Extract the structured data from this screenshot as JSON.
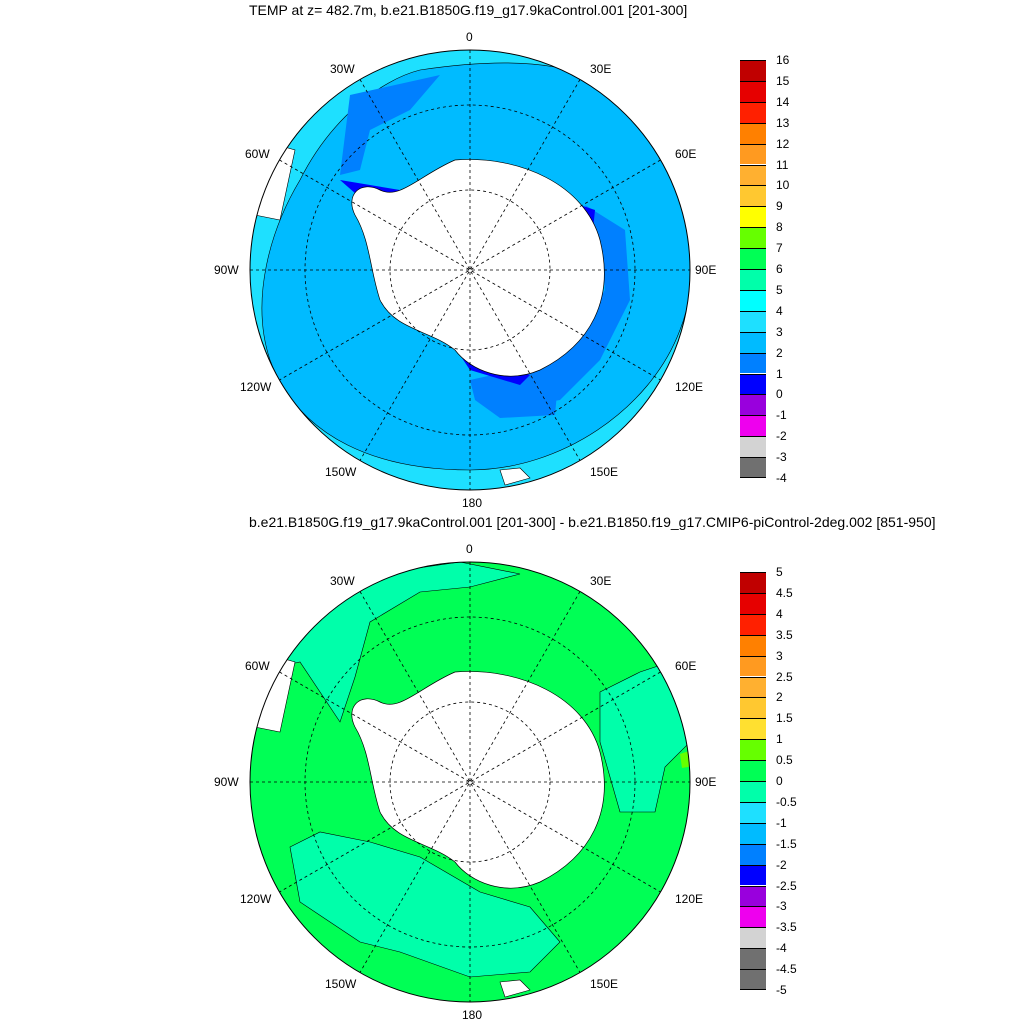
{
  "panels": [
    {
      "title": "TEMP at z= 482.7m, b.e21.B1850G.f19_g17.9kaControl.001 [201-300]",
      "lon_labels": [
        "0",
        "30E",
        "60E",
        "90E",
        "120E",
        "150E",
        "180",
        "150W",
        "120W",
        "90W",
        "60W",
        "30W"
      ],
      "colorbar": {
        "ticks": [
          "16",
          "15",
          "14",
          "13",
          "12",
          "11",
          "10",
          "9",
          "8",
          "7",
          "6",
          "5",
          "4",
          "3",
          "2",
          "1",
          "0",
          "-1",
          "-2",
          "-3",
          "-4"
        ],
        "colors": [
          "#c00000",
          "#e60000",
          "#ff2000",
          "#ff8000",
          "#ff9a20",
          "#ffb030",
          "#ffc830",
          "#ffff00",
          "#66ff00",
          "#00ff55",
          "#00ffaa",
          "#00ffff",
          "#1ee0ff",
          "#00bbff",
          "#0080ff",
          "#0000ff",
          "#9900dd",
          "#ee00ee",
          "#d3d3d3",
          "#707070"
        ]
      },
      "ocean_colors": {
        "outer": "#1ee0ff",
        "main": "#00bbff",
        "shelf": "#0080ff",
        "cold": "#0000ff",
        "coldest": "#ee00ee"
      }
    },
    {
      "title": "b.e21.B1850G.f19_g17.9kaControl.001 [201-300] - b.e21.B1850.f19_g17.CMIP6-piControl-2deg.002 [851-950]",
      "lon_labels": [
        "0",
        "30E",
        "60E",
        "90E",
        "120E",
        "150E",
        "180",
        "150W",
        "120W",
        "90W",
        "60W",
        "30W"
      ],
      "colorbar": {
        "ticks": [
          "5",
          "4.5",
          "4",
          "3.5",
          "3",
          "2.5",
          "2",
          "1.5",
          "1",
          "0.5",
          "0",
          "-0.5",
          "-1",
          "-1.5",
          "-2",
          "-2.5",
          "-3",
          "-3.5",
          "-4",
          "-4.5",
          "-5"
        ],
        "colors": [
          "#c00000",
          "#e60000",
          "#ff2000",
          "#ff8000",
          "#ff9a20",
          "#ffb030",
          "#ffc830",
          "#ffe030",
          "#66ff00",
          "#00ff55",
          "#00ffaa",
          "#1ee0ff",
          "#00bbff",
          "#0080ff",
          "#0000ff",
          "#9900dd",
          "#ee00ee",
          "#d3d3d3",
          "#707070",
          "#707070"
        ]
      },
      "ocean_colors": {
        "main": "#00ff55",
        "neg": "#00ffaa",
        "pos": "#66ff00"
      }
    }
  ]
}
